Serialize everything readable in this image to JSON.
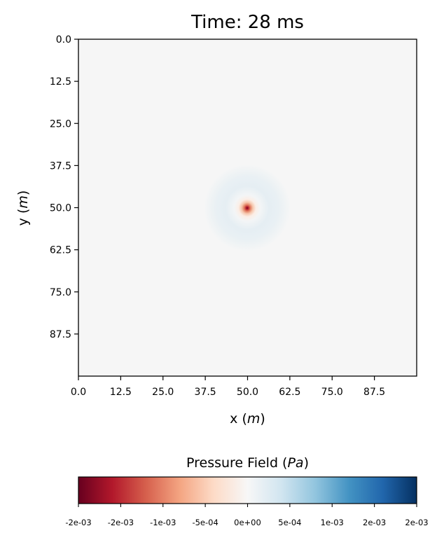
{
  "chart_data": {
    "type": "heatmap",
    "title": "Time:   28 ms",
    "x_axis": {
      "label": "x (m)",
      "label_text": "x (",
      "label_unit": "m",
      "label_close": ")",
      "ticks": [
        0.0,
        12.5,
        25.0,
        37.5,
        50.0,
        62.5,
        75.0,
        87.5
      ],
      "tick_labels": [
        "0.0",
        "12.5",
        "25.0",
        "37.5",
        "50.0",
        "62.5",
        "75.0",
        "87.5"
      ],
      "range": [
        0,
        100
      ]
    },
    "y_axis": {
      "label": "y (m)",
      "label_text": "y (",
      "label_unit": "m",
      "label_close": ")",
      "ticks": [
        0.0,
        12.5,
        25.0,
        37.5,
        50.0,
        62.5,
        75.0,
        87.5
      ],
      "tick_labels": [
        "0.0",
        "12.5",
        "25.0",
        "37.5",
        "50.0",
        "62.5",
        "75.0",
        "87.5"
      ],
      "range": [
        0,
        100
      ],
      "inverted": true
    },
    "field": {
      "description_source": "radial pressure pulse",
      "center": [
        50,
        50
      ],
      "peak_value": -0.002,
      "core_radius": 0.7,
      "ring_value_near": -0.0006,
      "ring_radius_near": 2.5,
      "ring_value_far": 8e-05,
      "ring_radius_far": 12.5,
      "background_value": 0.0
    },
    "colorbar": {
      "title": "Pressure Field (Pa)",
      "title_text": "Pressure Field (",
      "title_unit": "Pa",
      "title_close": ")",
      "colormap": "RdBu",
      "range": [
        -0.002,
        0.002
      ],
      "tick_labels": [
        "-2e-03",
        "-2e-03",
        "-1e-03",
        "-5e-04",
        "0e+00",
        "5e-04",
        "1e-03",
        "2e-03",
        "2e-03"
      ],
      "orientation": "horizontal",
      "position": "bottom"
    },
    "grid": false
  }
}
